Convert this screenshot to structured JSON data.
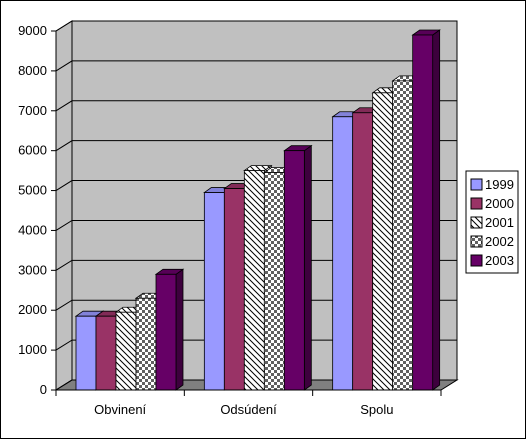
{
  "colors": {
    "1999": "#9999ff",
    "2000": "#993366",
    "2001": "#ffffff",
    "2002": "#ffffff",
    "2003": "#660066",
    "wall": "#c0c0c0",
    "floor": "#808080"
  },
  "chart_data": {
    "type": "bar",
    "categories": [
      "Obvinení",
      "Odsúdení",
      "Spolu"
    ],
    "series": [
      {
        "name": "1999",
        "values": [
          1850,
          4950,
          6850
        ],
        "fill": "solid"
      },
      {
        "name": "2000",
        "values": [
          1850,
          5050,
          6950
        ],
        "fill": "solid"
      },
      {
        "name": "2001",
        "values": [
          1950,
          5500,
          7450
        ],
        "fill": "hatch"
      },
      {
        "name": "2002",
        "values": [
          2300,
          5450,
          7750
        ],
        "fill": "checker"
      },
      {
        "name": "2003",
        "values": [
          2900,
          6000,
          8900
        ],
        "fill": "solid"
      }
    ],
    "ylim": [
      0,
      9000
    ],
    "yticks": [
      "0",
      "1000",
      "2000",
      "3000",
      "4000",
      "5000",
      "6000",
      "7000",
      "8000",
      "9000"
    ],
    "grid": true,
    "legend_position": "right"
  }
}
